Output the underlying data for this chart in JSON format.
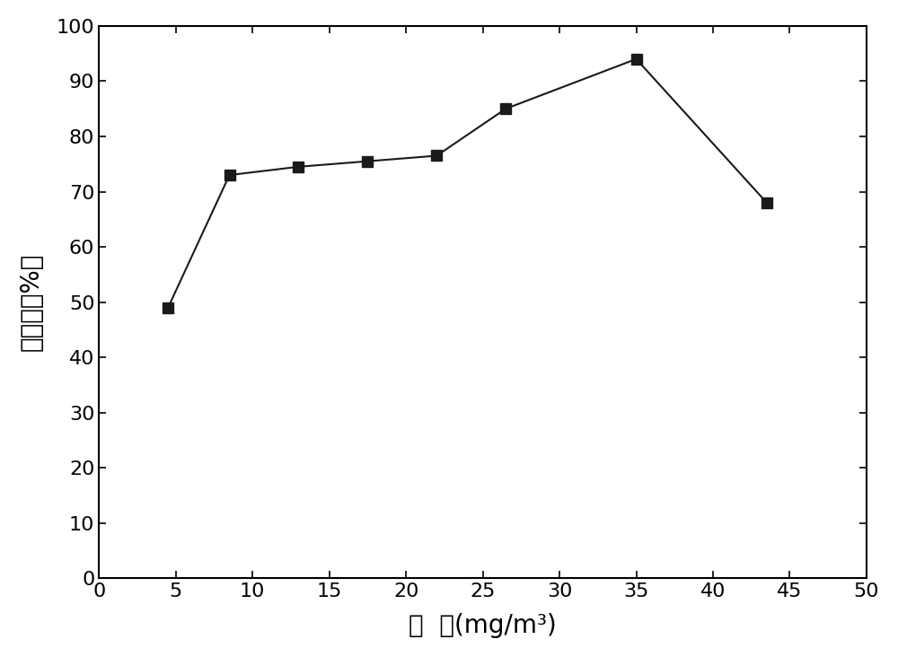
{
  "x": [
    4.5,
    8.5,
    13,
    17.5,
    22,
    26.5,
    35,
    43.5
  ],
  "y": [
    49,
    73,
    74.5,
    75.5,
    76.5,
    85,
    94,
    68
  ],
  "xlabel": "浓  度(mg/m³)",
  "ylabel": "降解率（%）",
  "xlim": [
    0,
    50
  ],
  "ylim": [
    0,
    100
  ],
  "xticks": [
    0,
    5,
    10,
    15,
    20,
    25,
    30,
    35,
    40,
    45,
    50
  ],
  "yticks": [
    0,
    10,
    20,
    30,
    40,
    50,
    60,
    70,
    80,
    90,
    100
  ],
  "line_color": "#1a1a1a",
  "marker": "s",
  "marker_size": 8,
  "line_width": 1.5,
  "background_color": "#ffffff",
  "tick_fontsize": 16,
  "label_fontsize": 20
}
